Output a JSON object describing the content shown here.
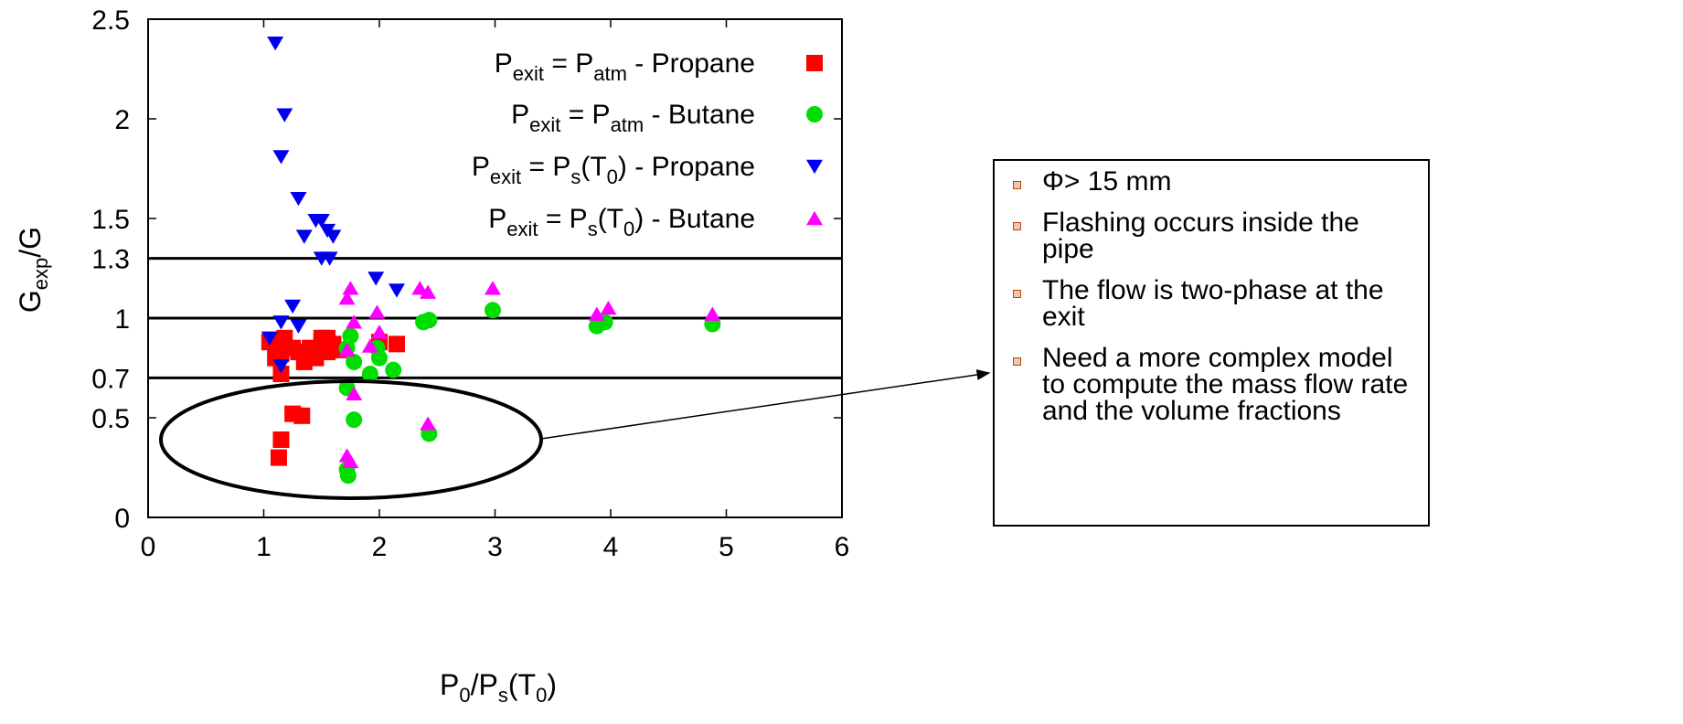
{
  "chart_data": {
    "type": "scatter",
    "xlabel": "P0/Ps(T0)",
    "ylabel": "Gexp/G",
    "xlim": [
      0,
      6
    ],
    "ylim": [
      0,
      2.5
    ],
    "x_ticks": [
      "0",
      "1",
      "2",
      "3",
      "4",
      "5",
      "6"
    ],
    "y_ticks": [
      "0",
      "0.5",
      "0.7",
      "1",
      "1.3",
      "1.5",
      "2",
      "2.5"
    ],
    "reference_lines": [
      1.3,
      1.0,
      0.7
    ],
    "grid": false,
    "legend_position": "top-right",
    "series": [
      {
        "name": "Pexit = Patm - Propane",
        "marker": "square",
        "color": "#ff0000",
        "points": [
          [
            1.05,
            0.88
          ],
          [
            1.1,
            0.8
          ],
          [
            1.15,
            0.82
          ],
          [
            1.15,
            0.72
          ],
          [
            1.18,
            0.9
          ],
          [
            1.25,
            0.85
          ],
          [
            1.3,
            0.83
          ],
          [
            1.35,
            0.78
          ],
          [
            1.4,
            0.85
          ],
          [
            1.45,
            0.8
          ],
          [
            1.5,
            0.88
          ],
          [
            1.55,
            0.83
          ],
          [
            1.6,
            0.87
          ],
          [
            1.65,
            0.84
          ],
          [
            1.5,
            0.9
          ],
          [
            1.55,
            0.9
          ],
          [
            2.0,
            0.88
          ],
          [
            2.15,
            0.87
          ],
          [
            1.25,
            0.52
          ],
          [
            1.33,
            0.51
          ],
          [
            1.15,
            0.39
          ],
          [
            1.13,
            0.3
          ]
        ]
      },
      {
        "name": "Pexit = Patm - Butane",
        "marker": "circle",
        "color": "#00dd00",
        "points": [
          [
            1.72,
            0.85
          ],
          [
            1.75,
            0.91
          ],
          [
            1.78,
            0.78
          ],
          [
            1.92,
            0.72
          ],
          [
            1.98,
            0.85
          ],
          [
            2.0,
            0.8
          ],
          [
            2.12,
            0.74
          ],
          [
            2.38,
            0.98
          ],
          [
            2.43,
            0.99
          ],
          [
            2.98,
            1.04
          ],
          [
            3.88,
            0.96
          ],
          [
            3.95,
            0.98
          ],
          [
            4.88,
            0.97
          ],
          [
            1.72,
            0.65
          ],
          [
            1.78,
            0.49
          ],
          [
            2.43,
            0.42
          ],
          [
            1.72,
            0.24
          ],
          [
            1.73,
            0.21
          ]
        ]
      },
      {
        "name": "Pexit = Ps(T0) - Propane",
        "marker": "triangle-down",
        "color": "#0000ee",
        "points": [
          [
            1.1,
            2.38
          ],
          [
            1.18,
            2.02
          ],
          [
            1.15,
            1.81
          ],
          [
            1.3,
            1.6
          ],
          [
            1.45,
            1.49
          ],
          [
            1.5,
            1.49
          ],
          [
            1.55,
            1.44
          ],
          [
            1.6,
            1.41
          ],
          [
            1.35,
            1.41
          ],
          [
            1.5,
            1.3
          ],
          [
            1.57,
            1.3
          ],
          [
            1.97,
            1.2
          ],
          [
            2.15,
            1.14
          ],
          [
            1.25,
            1.06
          ],
          [
            1.15,
            0.98
          ],
          [
            1.3,
            0.96
          ],
          [
            1.05,
            0.9
          ],
          [
            1.15,
            0.76
          ]
        ]
      },
      {
        "name": "Pexit = Ps(T0) - Butane",
        "marker": "triangle-up",
        "color": "#ff00ff",
        "points": [
          [
            1.72,
            1.1
          ],
          [
            1.75,
            1.15
          ],
          [
            1.78,
            0.98
          ],
          [
            1.98,
            1.03
          ],
          [
            2.0,
            0.93
          ],
          [
            1.92,
            0.86
          ],
          [
            2.35,
            1.15
          ],
          [
            2.42,
            1.13
          ],
          [
            2.98,
            1.15
          ],
          [
            3.88,
            1.02
          ],
          [
            3.98,
            1.05
          ],
          [
            4.88,
            1.02
          ],
          [
            1.72,
            0.84
          ],
          [
            1.78,
            0.62
          ],
          [
            2.42,
            0.47
          ],
          [
            1.72,
            0.31
          ],
          [
            1.75,
            0.28
          ]
        ]
      }
    ]
  },
  "axis": {
    "y_title_main": "G",
    "y_title_sub": "exp",
    "y_title_tail": "/G",
    "x_title_p": "P",
    "x_title_sub0": "0",
    "x_title_mid": "/P",
    "x_title_subs": "s",
    "x_title_open": "(T",
    "x_title_sub0b": "0",
    "x_title_close": ")"
  },
  "legend": [
    {
      "pre": "P",
      "sub1": "exit",
      "mid": " = P",
      "sub2": "atm",
      "post1": "",
      "sub3": "",
      "post2": " - Propane"
    },
    {
      "pre": "P",
      "sub1": "exit",
      "mid": " = P",
      "sub2": "atm",
      "post1": "",
      "sub3": "",
      "post2": " - Butane"
    },
    {
      "pre": "P",
      "sub1": "exit",
      "mid": " = P",
      "sub2": "s",
      "post1": "(T",
      "sub3": "0",
      "post2": ") - Propane"
    },
    {
      "pre": "P",
      "sub1": "exit",
      "mid": " = P",
      "sub2": "s",
      "post1": "(T",
      "sub3": "0",
      "post2": ") - Butane"
    }
  ],
  "callout": {
    "items": [
      "Φ> 15 mm",
      "Flashing occurs inside the pipe",
      "The flow is two-phase at the exit",
      "Need a more complex model to compute the mass flow rate and the volume fractions"
    ]
  }
}
